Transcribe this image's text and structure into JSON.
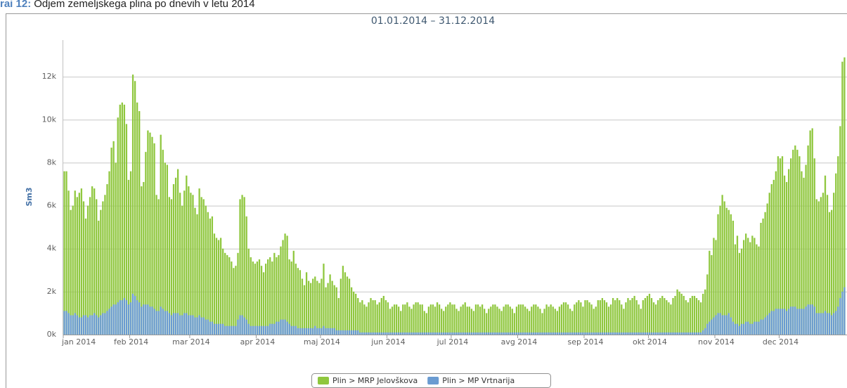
{
  "figure_label": "rai 12:",
  "caption": "Odjem zemeljskega plina po dnevih v letu 2014",
  "chart_data": {
    "type": "bar",
    "title": "01.01.2014 – 31.12.2014",
    "ylabel": "Sm3",
    "categories": [
      "jan 2014",
      null,
      null,
      null,
      null,
      null,
      null,
      null,
      null,
      null,
      null,
      null,
      null,
      null,
      null,
      null,
      null,
      null,
      null,
      null,
      null,
      null,
      null,
      null,
      null,
      null,
      null,
      null,
      null,
      null,
      null,
      "feb 2014",
      null,
      null,
      null,
      null,
      null,
      null,
      null,
      null,
      null,
      null,
      null,
      null,
      null,
      null,
      null,
      null,
      null,
      null,
      null,
      null,
      null,
      null,
      null,
      null,
      null,
      null,
      null,
      "mar 2014",
      null,
      null,
      null,
      null,
      null,
      null,
      null,
      null,
      null,
      null,
      null,
      null,
      null,
      null,
      null,
      null,
      null,
      null,
      null,
      null,
      null,
      null,
      null,
      null,
      null,
      null,
      null,
      null,
      null,
      null,
      "apr 2014",
      null,
      null,
      null,
      null,
      null,
      null,
      null,
      null,
      null,
      null,
      null,
      null,
      null,
      null,
      null,
      null,
      null,
      null,
      null,
      null,
      null,
      null,
      null,
      null,
      null,
      null,
      null,
      null,
      null,
      "maj 2014",
      null,
      null,
      null,
      null,
      null,
      null,
      null,
      null,
      null,
      null,
      null,
      null,
      null,
      null,
      null,
      null,
      null,
      null,
      null,
      null,
      null,
      null,
      null,
      null,
      null,
      null,
      null,
      null,
      null,
      null,
      "jun 2014",
      null,
      null,
      null,
      null,
      null,
      null,
      null,
      null,
      null,
      null,
      null,
      null,
      null,
      null,
      null,
      null,
      null,
      null,
      null,
      null,
      null,
      null,
      null,
      null,
      null,
      null,
      null,
      null,
      null,
      "jul 2014",
      null,
      null,
      null,
      null,
      null,
      null,
      null,
      null,
      null,
      null,
      null,
      null,
      null,
      null,
      null,
      null,
      null,
      null,
      null,
      null,
      null,
      null,
      null,
      null,
      null,
      null,
      null,
      null,
      null,
      null,
      "avg 2014",
      null,
      null,
      null,
      null,
      null,
      null,
      null,
      null,
      null,
      null,
      null,
      null,
      null,
      null,
      null,
      null,
      null,
      null,
      null,
      null,
      null,
      null,
      null,
      null,
      null,
      null,
      null,
      null,
      null,
      null,
      "sep 2014",
      null,
      null,
      null,
      null,
      null,
      null,
      null,
      null,
      null,
      null,
      null,
      null,
      null,
      null,
      null,
      null,
      null,
      null,
      null,
      null,
      null,
      null,
      null,
      null,
      null,
      null,
      null,
      null,
      null,
      "okt 2014",
      null,
      null,
      null,
      null,
      null,
      null,
      null,
      null,
      null,
      null,
      null,
      null,
      null,
      null,
      null,
      null,
      null,
      null,
      null,
      null,
      null,
      null,
      null,
      null,
      null,
      null,
      null,
      null,
      null,
      null,
      "nov 2014",
      null,
      null,
      null,
      null,
      null,
      null,
      null,
      null,
      null,
      null,
      null,
      null,
      null,
      null,
      null,
      null,
      null,
      null,
      null,
      null,
      null,
      null,
      null,
      null,
      null,
      null,
      null,
      null,
      null,
      "dec 2014",
      null,
      null,
      null,
      null,
      null,
      null,
      null,
      null,
      null,
      null,
      null,
      null,
      null,
      null,
      null,
      null,
      null,
      null,
      null,
      null,
      null,
      null,
      null,
      null,
      null,
      null,
      null,
      null,
      null,
      null
    ],
    "series": [
      {
        "name": "Plin > MRP Jelovškova",
        "color": "#8fc73e",
        "values": [
          7600,
          7600,
          6700,
          5800,
          6000,
          6700,
          6400,
          6600,
          6800,
          6200,
          5400,
          6000,
          6400,
          6900,
          6800,
          6300,
          5300,
          5800,
          6200,
          6500,
          7000,
          7600,
          8700,
          9000,
          8000,
          10100,
          10700,
          10800,
          10700,
          9800,
          7200,
          7600,
          12100,
          11800,
          10800,
          10400,
          6900,
          7100,
          8500,
          9500,
          9400,
          9200,
          8900,
          6500,
          6300,
          9300,
          8600,
          8000,
          7900,
          6400,
          6300,
          7000,
          7300,
          7700,
          6600,
          6000,
          6700,
          7400,
          6900,
          6600,
          6500,
          5900,
          5600,
          6800,
          6400,
          6300,
          6000,
          5700,
          5400,
          5500,
          4700,
          4500,
          4400,
          4500,
          4000,
          3800,
          3700,
          3600,
          3400,
          3100,
          3200,
          3800,
          6300,
          6500,
          6400,
          5500,
          4000,
          3600,
          3400,
          3300,
          3400,
          3500,
          3200,
          2900,
          3300,
          3500,
          3600,
          3400,
          3800,
          3600,
          3700,
          4100,
          4400,
          4700,
          4600,
          3500,
          3400,
          3900,
          3300,
          3100,
          3000,
          2600,
          2300,
          2900,
          2500,
          2400,
          2600,
          2700,
          2500,
          2400,
          2600,
          3300,
          2200,
          2400,
          2800,
          2500,
          2300,
          2200,
          1700,
          2600,
          3200,
          2900,
          2700,
          2600,
          2200,
          2000,
          1900,
          1700,
          1500,
          1600,
          1400,
          1300,
          1500,
          1700,
          1600,
          1600,
          1400,
          1500,
          1700,
          1800,
          1600,
          1500,
          1200,
          1300,
          1400,
          1400,
          1300,
          1100,
          1400,
          1400,
          1500,
          1300,
          1200,
          1400,
          1500,
          1500,
          1400,
          1400,
          1100,
          1000,
          1300,
          1400,
          1400,
          1300,
          1500,
          1400,
          1200,
          1100,
          1300,
          1400,
          1500,
          1400,
          1400,
          1200,
          1100,
          1300,
          1400,
          1500,
          1300,
          1300,
          1200,
          1100,
          1400,
          1400,
          1300,
          1400,
          1200,
          1000,
          1200,
          1300,
          1400,
          1400,
          1300,
          1200,
          1100,
          1300,
          1400,
          1400,
          1300,
          1200,
          1000,
          1300,
          1400,
          1400,
          1400,
          1300,
          1200,
          1100,
          1300,
          1400,
          1400,
          1300,
          1200,
          1000,
          1200,
          1400,
          1300,
          1400,
          1300,
          1200,
          1100,
          1300,
          1400,
          1500,
          1500,
          1400,
          1200,
          1100,
          1400,
          1500,
          1600,
          1500,
          1300,
          1600,
          1600,
          1500,
          1400,
          1200,
          1300,
          1600,
          1600,
          1700,
          1600,
          1500,
          1300,
          1400,
          1700,
          1600,
          1700,
          1600,
          1400,
          1200,
          1500,
          1700,
          1600,
          1700,
          1800,
          1600,
          1400,
          1200,
          1600,
          1700,
          1800,
          1900,
          1700,
          1500,
          1400,
          1600,
          1700,
          1800,
          1700,
          1600,
          1500,
          1400,
          1700,
          1800,
          2100,
          2000,
          1900,
          1800,
          1600,
          1500,
          1700,
          1800,
          1800,
          1700,
          1600,
          1500,
          1900,
          2100,
          2800,
          3900,
          3700,
          4500,
          4400,
          5600,
          6000,
          6500,
          6200,
          5900,
          5800,
          5600,
          5300,
          4200,
          4600,
          3800,
          4000,
          4400,
          4700,
          4500,
          4300,
          4600,
          4500,
          4200,
          4100,
          5200,
          5400,
          5700,
          6100,
          6600,
          7000,
          7200,
          7600,
          8300,
          8200,
          8300,
          7400,
          7100,
          7700,
          8200,
          8600,
          8800,
          8600,
          8300,
          7600,
          7300,
          7900,
          8800,
          9500,
          9600,
          8200,
          6300,
          6200,
          6400,
          6600,
          7400,
          6500,
          5700,
          5800,
          6600,
          7500,
          8300,
          9700,
          12700,
          12900
        ]
      },
      {
        "name": "Plin > MP Vrtnarija",
        "color": "#6a9bd1",
        "values": [
          1100,
          1100,
          1000,
          900,
          900,
          1000,
          900,
          800,
          800,
          900,
          900,
          800,
          900,
          900,
          1000,
          900,
          800,
          900,
          1000,
          1000,
          1100,
          1200,
          1300,
          1400,
          1400,
          1500,
          1600,
          1600,
          1700,
          1600,
          1400,
          1500,
          1900,
          1800,
          1600,
          1500,
          1300,
          1400,
          1400,
          1400,
          1300,
          1300,
          1200,
          1100,
          1100,
          1300,
          1200,
          1100,
          1100,
          1000,
          900,
          1000,
          1000,
          1000,
          900,
          900,
          1000,
          1000,
          900,
          900,
          900,
          800,
          800,
          900,
          800,
          800,
          700,
          700,
          600,
          600,
          500,
          500,
          500,
          500,
          500,
          400,
          400,
          400,
          400,
          400,
          400,
          700,
          900,
          900,
          800,
          700,
          500,
          400,
          400,
          400,
          400,
          400,
          400,
          400,
          400,
          400,
          500,
          500,
          500,
          600,
          600,
          700,
          700,
          700,
          600,
          500,
          400,
          400,
          400,
          300,
          300,
          300,
          300,
          300,
          300,
          300,
          300,
          400,
          300,
          300,
          300,
          400,
          300,
          300,
          300,
          300,
          300,
          200,
          200,
          200,
          200,
          200,
          200,
          200,
          200,
          200,
          200,
          200,
          100,
          100,
          100,
          100,
          100,
          100,
          100,
          100,
          100,
          100,
          100,
          100,
          100,
          100,
          100,
          100,
          100,
          100,
          100,
          100,
          100,
          100,
          100,
          100,
          100,
          100,
          100,
          100,
          100,
          100,
          100,
          100,
          100,
          100,
          100,
          100,
          100,
          100,
          100,
          100,
          100,
          100,
          100,
          100,
          100,
          100,
          100,
          100,
          100,
          100,
          100,
          100,
          100,
          100,
          100,
          100,
          100,
          100,
          100,
          100,
          100,
          100,
          100,
          100,
          100,
          100,
          100,
          100,
          100,
          100,
          100,
          100,
          100,
          100,
          100,
          100,
          100,
          100,
          100,
          100,
          100,
          100,
          100,
          100,
          100,
          100,
          100,
          100,
          100,
          100,
          100,
          100,
          100,
          100,
          100,
          100,
          100,
          100,
          100,
          100,
          100,
          100,
          100,
          100,
          100,
          100,
          100,
          100,
          100,
          100,
          100,
          100,
          100,
          100,
          100,
          100,
          100,
          100,
          100,
          100,
          100,
          100,
          100,
          100,
          100,
          100,
          100,
          100,
          100,
          100,
          100,
          100,
          100,
          100,
          100,
          100,
          100,
          100,
          100,
          100,
          100,
          100,
          100,
          100,
          100,
          100,
          100,
          100,
          100,
          100,
          100,
          100,
          100,
          100,
          100,
          100,
          100,
          100,
          100,
          100,
          200,
          300,
          500,
          600,
          700,
          800,
          900,
          1000,
          1000,
          900,
          900,
          900,
          1000,
          800,
          600,
          500,
          500,
          400,
          500,
          500,
          600,
          600,
          500,
          500,
          600,
          600,
          600,
          700,
          700,
          800,
          900,
          1000,
          1100,
          1100,
          1200,
          1200,
          1200,
          1200,
          1200,
          1100,
          1200,
          1300,
          1300,
          1300,
          1200,
          1200,
          1200,
          1200,
          1300,
          1400,
          1400,
          1400,
          1300,
          1000,
          1000,
          1000,
          1000,
          1100,
          1000,
          1000,
          900,
          1000,
          1100,
          1300,
          1700,
          2000,
          2200
        ]
      }
    ],
    "ylim": [
      0,
      14000
    ],
    "yticks": [
      {
        "value": 0,
        "label": "0k"
      },
      {
        "value": 2000,
        "label": "2k"
      },
      {
        "value": 4000,
        "label": "4k"
      },
      {
        "value": 6000,
        "label": "6k"
      },
      {
        "value": 8000,
        "label": "8k"
      },
      {
        "value": 10000,
        "label": "10k"
      },
      {
        "value": 12000,
        "label": "12k"
      }
    ],
    "grid": true,
    "legend": "bottom"
  }
}
